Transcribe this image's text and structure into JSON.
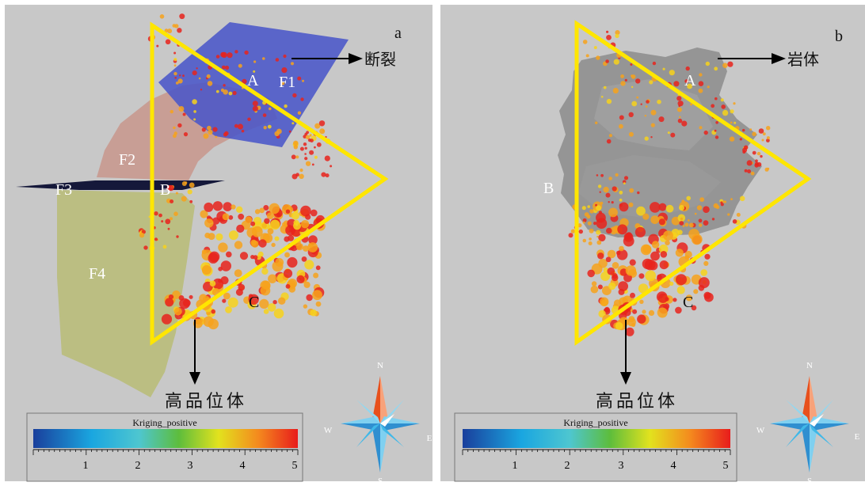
{
  "panels": [
    {
      "panel_letter": "a",
      "arrow_label": "断裂",
      "lower_arrow_label": "高品位体",
      "vertex_labels": [
        "A",
        "B",
        "C"
      ],
      "fault_labels": [
        "F1",
        "F2",
        "F3",
        "F4"
      ],
      "legend": {
        "title": "Kriging_positive",
        "ticks": [
          "1",
          "2",
          "3",
          "4",
          "5"
        ]
      },
      "compass": {
        "north": "N",
        "south": "S",
        "west": "W",
        "east": "E"
      }
    },
    {
      "panel_letter": "b",
      "arrow_label": "岩体",
      "lower_arrow_label": "高品位体",
      "vertex_labels": [
        "A",
        "B",
        "C"
      ],
      "legend": {
        "title": "Kriging_positive",
        "ticks": [
          "1",
          "2",
          "3",
          "4",
          "5"
        ]
      },
      "compass": {
        "north": "N",
        "south": "S",
        "west": "W",
        "east": "E"
      }
    }
  ],
  "colors": {
    "background": "#c8c8c8",
    "triangle": "#ffe600",
    "fault_f1": "#4a56c8",
    "fault_f2": "#c8968c",
    "fault_f3": "#15183a",
    "fault_f4": "#b9bd7a",
    "rock_body": "#8c8c8c",
    "anomaly_high": "#e8231c",
    "anomaly_mid": "#f7a21b",
    "compass_north": "#e8501c",
    "compass_star": "#3fb8e8"
  }
}
